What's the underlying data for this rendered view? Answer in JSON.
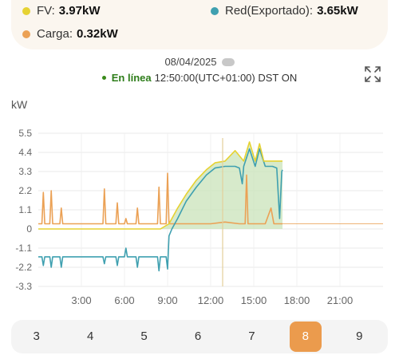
{
  "legend": {
    "pv": {
      "label": "FV:",
      "value": "3.97kW",
      "color": "#e6d232"
    },
    "grid": {
      "label": "Red(Exportado):",
      "value": "3.65kW",
      "color": "#3fa0b0"
    },
    "load": {
      "label": "Carga:",
      "value": "0.32kW",
      "color": "#eba155"
    }
  },
  "header": {
    "date": "08/04/2025",
    "status": "En línea",
    "time": "12:50:00(UTC+01:00) DST ON"
  },
  "icons": {
    "weather": "cloud-icon",
    "expand": "expand-icon"
  },
  "chart_data": {
    "type": "line",
    "ylabel": "kW",
    "yticks": [
      "5.5",
      "4.4",
      "3.3",
      "2.2",
      "1.1",
      "0",
      "-1.1",
      "-2.2",
      "-3.3"
    ],
    "xticks": [
      "3:00",
      "6:00",
      "9:00",
      "12:00",
      "15:00",
      "18:00",
      "21:00"
    ],
    "ylim": [
      -3.3,
      5.5
    ],
    "xlim": [
      0,
      24
    ],
    "grid": true,
    "series": [
      {
        "name": "FV",
        "color": "#e6d232",
        "x": [
          0,
          6,
          8.5,
          9.1,
          9.7,
          10.3,
          11,
          11.7,
          12.3,
          13,
          13.7,
          14.3,
          14.7,
          15.1,
          15.4,
          15.7,
          16,
          16.5,
          17
        ],
        "y": [
          0,
          0,
          0,
          0.3,
          1.2,
          2.0,
          2.8,
          3.4,
          3.8,
          3.9,
          4.5,
          3.9,
          5.0,
          3.9,
          4.9,
          3.9,
          3.9,
          3.9,
          3.9
        ]
      },
      {
        "name": "Red(Exportado)",
        "color": "#3fa0b0",
        "x": [
          0,
          0.25,
          0.35,
          0.45,
          0.8,
          0.9,
          1.0,
          1.5,
          1.6,
          1.7,
          4.5,
          4.6,
          4.7,
          5.4,
          5.5,
          5.6,
          6.0,
          6.1,
          6.2,
          6.8,
          6.9,
          7.0,
          8.3,
          8.4,
          8.5,
          8.9,
          9.0,
          9.1,
          9.3,
          9.7,
          10.3,
          11,
          11.7,
          12.3,
          13,
          13.7,
          14.0,
          14.2,
          14.3,
          14.7,
          15.1,
          15.4,
          15.8,
          16.3,
          16.6,
          16.8,
          16.95,
          17
        ],
        "y": [
          -1.6,
          -1.6,
          -2.1,
          -1.6,
          -1.6,
          -2.2,
          -1.6,
          -1.6,
          -2.2,
          -1.6,
          -1.6,
          -2.0,
          -1.6,
          -1.6,
          -2.1,
          -1.6,
          -1.6,
          -1.1,
          -1.6,
          -1.6,
          -2.2,
          -1.6,
          -1.6,
          -2.4,
          -1.6,
          -1.6,
          -2.3,
          -0.4,
          0.0,
          0.6,
          1.6,
          2.4,
          3.1,
          3.5,
          3.6,
          3.6,
          3.5,
          2.6,
          3.6,
          4.6,
          3.6,
          4.6,
          3.6,
          3.6,
          3.5,
          0.6,
          3.3,
          3.4
        ]
      },
      {
        "name": "Carga",
        "color": "#eba155",
        "x": [
          0,
          0.25,
          0.35,
          0.45,
          0.8,
          0.9,
          1.0,
          1.5,
          1.6,
          1.7,
          4.5,
          4.6,
          4.7,
          5.4,
          5.5,
          5.6,
          6.0,
          6.1,
          6.2,
          6.8,
          6.9,
          7.0,
          8.3,
          8.4,
          8.5,
          8.9,
          9.0,
          9.1,
          12,
          13,
          14,
          14.4,
          14.5,
          14.6,
          15.8,
          16.2,
          16.4,
          16.6,
          17
        ],
        "y": [
          0.3,
          0.3,
          2.1,
          0.3,
          0.3,
          2.2,
          0.3,
          0.3,
          1.2,
          0.3,
          0.3,
          2.3,
          0.3,
          0.3,
          1.5,
          0.3,
          0.3,
          0.6,
          0.3,
          0.3,
          1.2,
          0.3,
          0.3,
          2.4,
          0.3,
          0.3,
          3.2,
          0.3,
          0.3,
          0.4,
          0.3,
          0.3,
          3.1,
          0.3,
          0.3,
          1.2,
          0.3,
          0.3,
          0.3
        ]
      }
    ]
  },
  "days": {
    "items": [
      "3",
      "4",
      "5",
      "6",
      "7",
      "8",
      "9"
    ],
    "selected": "8"
  }
}
